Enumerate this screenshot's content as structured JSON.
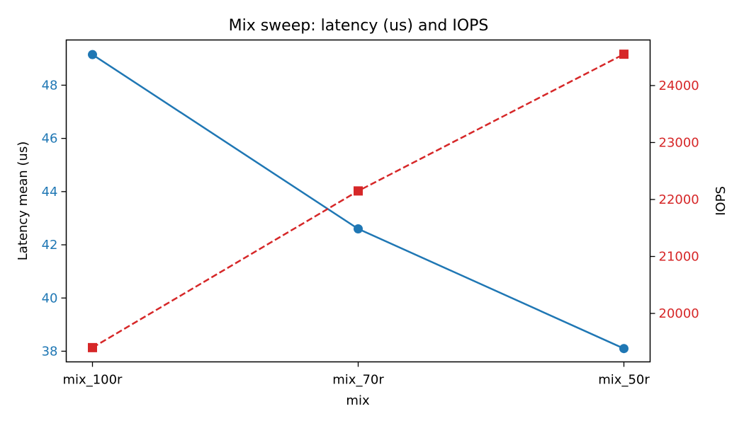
{
  "chart_data": {
    "type": "line",
    "title": "Mix sweep: latency (us) and IOPS",
    "xlabel": "mix",
    "categories": [
      "mix_100r",
      "mix_70r",
      "mix_50r"
    ],
    "y_left": {
      "label": "Latency mean (us)",
      "ticks": [
        38,
        40,
        42,
        44,
        46,
        48
      ],
      "range": [
        37.6,
        49.7
      ],
      "color": "#1f77b4"
    },
    "y_right": {
      "label": "IOPS",
      "ticks": [
        20000,
        21000,
        22000,
        23000,
        24000
      ],
      "range": [
        19150,
        24800
      ],
      "color": "#d62728"
    },
    "series": [
      {
        "axis": "left",
        "values": [
          49.15,
          42.6,
          38.1
        ],
        "color": "#1f77b4",
        "marker": "circle",
        "line_style": "solid"
      },
      {
        "axis": "right",
        "values": [
          19400,
          22150,
          24550
        ],
        "color": "#d62728",
        "marker": "square",
        "line_style": "dashed"
      }
    ],
    "grid": false,
    "legend": "none"
  }
}
